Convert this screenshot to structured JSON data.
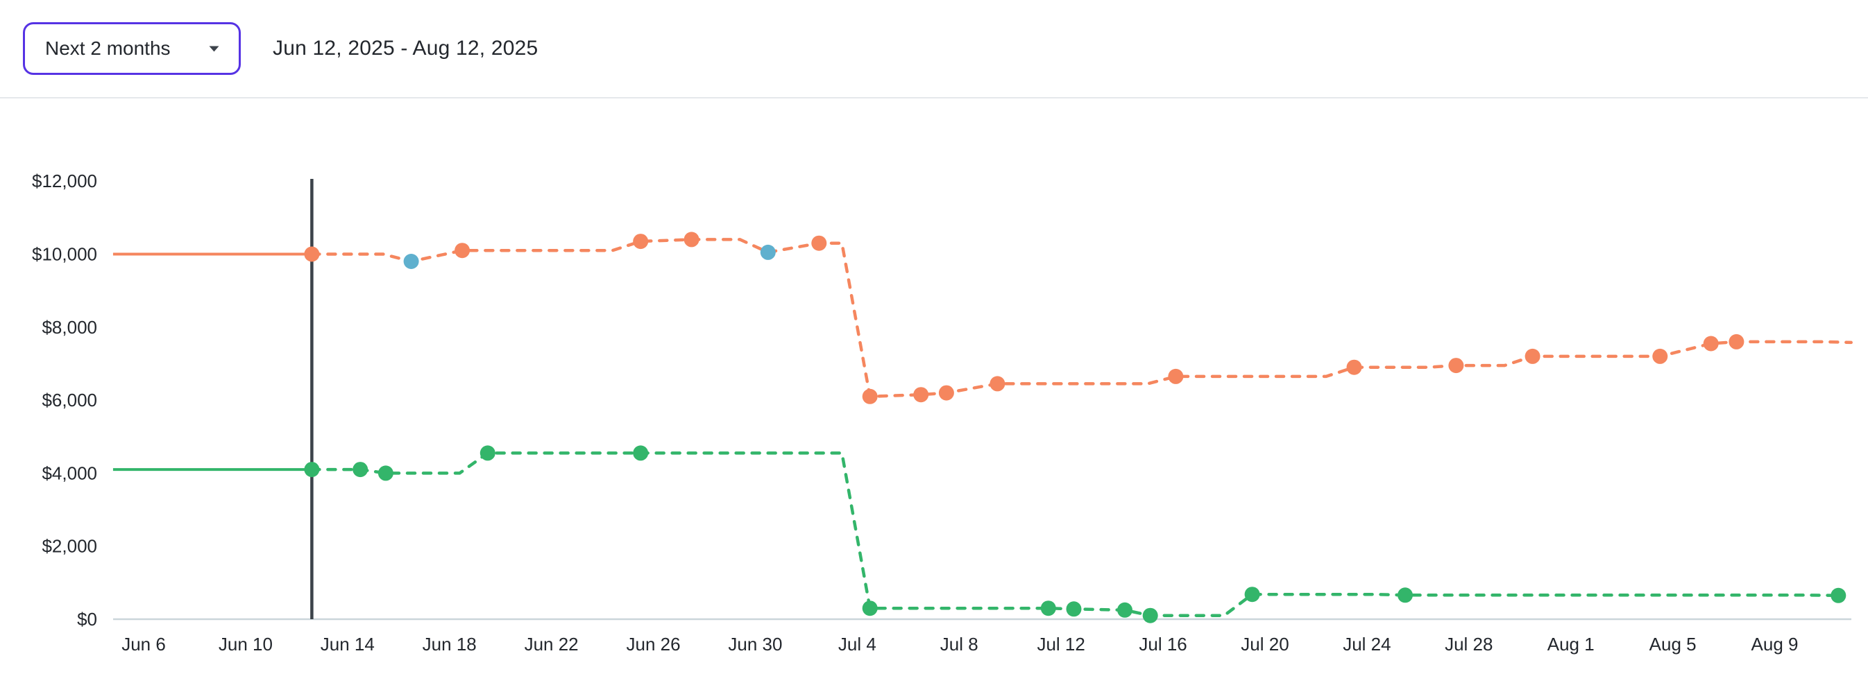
{
  "header": {
    "range_selector": {
      "label": "Next 2 months"
    },
    "date_range": "Jun 12, 2025 - Aug 12, 2025"
  },
  "chart_data": {
    "type": "line",
    "title": "",
    "xlabel": "",
    "ylabel": "",
    "ylim": [
      0,
      12000
    ],
    "grid": false,
    "legend": "none",
    "y_ticks": {
      "values": [
        0,
        2000,
        4000,
        6000,
        8000,
        10000,
        12000
      ],
      "labels": [
        "$0",
        "$2,000",
        "$4,000",
        "$6,000",
        "$8,000",
        "$10,000",
        "$12,000"
      ]
    },
    "x_ticks": {
      "labels": [
        "Jun 6",
        "Jun 10",
        "Jun 14",
        "Jun 18",
        "Jun 22",
        "Jun 26",
        "Jun 30",
        "Jul 4",
        "Jul 8",
        "Jul 12",
        "Jul 16",
        "Jul 20",
        "Jul 24",
        "Jul 28",
        "Aug 1",
        "Aug 5",
        "Aug 9"
      ],
      "day_offsets": [
        0,
        4,
        8,
        12,
        16,
        20,
        24,
        28,
        32,
        36,
        40,
        44,
        48,
        52,
        56,
        60,
        64
      ]
    },
    "today_marker": {
      "date": "Jun 13",
      "day_offset": 6.6,
      "color": "#3C434A"
    },
    "highlight_dot_color": "#5FB0CE",
    "axis_line_color": "#CBD5DA",
    "history_note": "solid line before today marker, dashed forecast after",
    "series": [
      {
        "id": "orange",
        "color": "#F5865E",
        "points": [
          {
            "date": "Jun 5",
            "d": -1.2,
            "v": 10000,
            "dot": "none"
          },
          {
            "date": "Jun 13",
            "d": 6.6,
            "v": 10000,
            "dot": "normal"
          },
          {
            "date": "Jun 16",
            "d": 10.5,
            "v": 9800,
            "dot": "highlight"
          },
          {
            "date": "Jun 18",
            "d": 12.5,
            "v": 10100,
            "dot": "normal"
          },
          {
            "date": "Jun 25",
            "d": 19.5,
            "v": 10350,
            "dot": "normal"
          },
          {
            "date": "Jun 27",
            "d": 21.5,
            "v": 10400,
            "dot": "normal"
          },
          {
            "date": "Jun 30",
            "d": 24.5,
            "v": 10050,
            "dot": "highlight"
          },
          {
            "date": "Jul 2",
            "d": 26.5,
            "v": 10300,
            "dot": "normal"
          },
          {
            "date": "Jul 4",
            "d": 28.5,
            "v": 6100,
            "dot": "normal"
          },
          {
            "date": "Jul 6",
            "d": 30.5,
            "v": 6150,
            "dot": "normal"
          },
          {
            "date": "Jul 7",
            "d": 31.5,
            "v": 6200,
            "dot": "normal"
          },
          {
            "date": "Jul 9",
            "d": 33.5,
            "v": 6450,
            "dot": "normal"
          },
          {
            "date": "Jul 16",
            "d": 40.5,
            "v": 6650,
            "dot": "normal"
          },
          {
            "date": "Jul 23",
            "d": 47.5,
            "v": 6900,
            "dot": "normal"
          },
          {
            "date": "Jul 27",
            "d": 51.5,
            "v": 6950,
            "dot": "normal"
          },
          {
            "date": "Jul 30",
            "d": 54.5,
            "v": 7200,
            "dot": "normal"
          },
          {
            "date": "Aug 4",
            "d": 59.5,
            "v": 7200,
            "dot": "normal"
          },
          {
            "date": "Aug 6",
            "d": 61.5,
            "v": 7550,
            "dot": "normal"
          },
          {
            "date": "Aug 7",
            "d": 62.5,
            "v": 7600,
            "dot": "normal"
          },
          {
            "date": "Aug 12",
            "d": 67.0,
            "v": 7580,
            "dot": "none"
          }
        ]
      },
      {
        "id": "green",
        "color": "#33B56A",
        "points": [
          {
            "date": "Jun 5",
            "d": -1.2,
            "v": 4100,
            "dot": "none"
          },
          {
            "date": "Jun 13",
            "d": 6.6,
            "v": 4100,
            "dot": "normal"
          },
          {
            "date": "Jun 14",
            "d": 8.5,
            "v": 4100,
            "dot": "normal"
          },
          {
            "date": "Jun 15",
            "d": 9.5,
            "v": 4000,
            "dot": "normal"
          },
          {
            "date": "Jun 19",
            "d": 13.5,
            "v": 4550,
            "dot": "normal"
          },
          {
            "date": "Jun 25",
            "d": 19.5,
            "v": 4550,
            "dot": "normal"
          },
          {
            "date": "Jul 4",
            "d": 28.5,
            "v": 300,
            "dot": "normal"
          },
          {
            "date": "Jul 11",
            "d": 35.5,
            "v": 300,
            "dot": "normal"
          },
          {
            "date": "Jul 12",
            "d": 36.5,
            "v": 280,
            "dot": "normal"
          },
          {
            "date": "Jul 14",
            "d": 38.5,
            "v": 250,
            "dot": "normal"
          },
          {
            "date": "Jul 15",
            "d": 39.5,
            "v": 100,
            "dot": "normal"
          },
          {
            "date": "Jul 19",
            "d": 43.5,
            "v": 680,
            "dot": "normal"
          },
          {
            "date": "Jul 25",
            "d": 49.5,
            "v": 660,
            "dot": "normal"
          },
          {
            "date": "Aug 12",
            "d": 66.5,
            "v": 650,
            "dot": "normal"
          }
        ]
      }
    ]
  }
}
